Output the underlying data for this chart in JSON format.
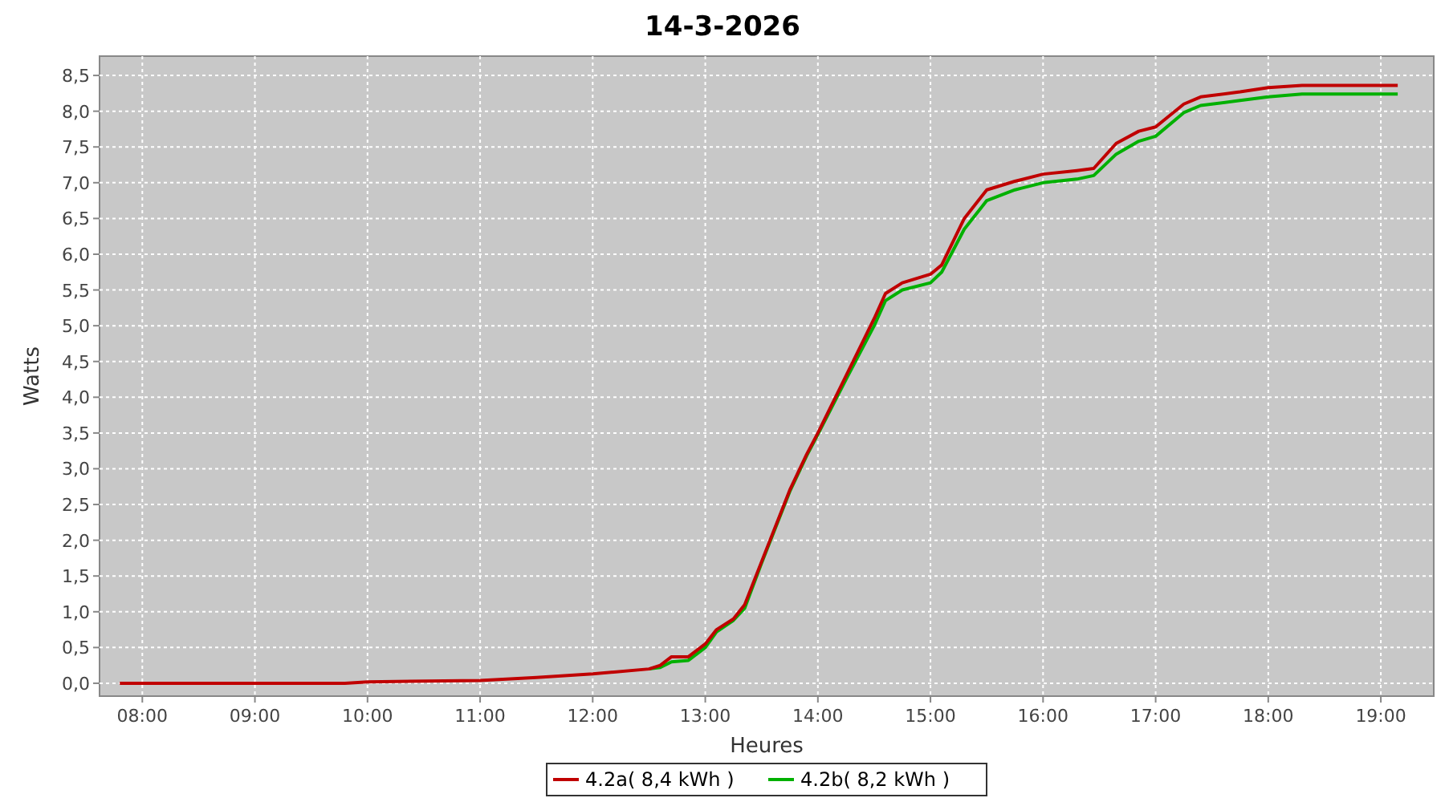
{
  "chart_data": {
    "type": "line",
    "title": "14-3-2026",
    "xlabel": "Heures",
    "ylabel": "Watts",
    "xlim": [
      7.62,
      19.47
    ],
    "ylim": [
      -0.18,
      8.77
    ],
    "xticks": [
      {
        "value": 8,
        "label": "08:00"
      },
      {
        "value": 9,
        "label": "09:00"
      },
      {
        "value": 10,
        "label": "10:00"
      },
      {
        "value": 11,
        "label": "11:00"
      },
      {
        "value": 12,
        "label": "12:00"
      },
      {
        "value": 13,
        "label": "13:00"
      },
      {
        "value": 14,
        "label": "14:00"
      },
      {
        "value": 15,
        "label": "15:00"
      },
      {
        "value": 16,
        "label": "16:00"
      },
      {
        "value": 17,
        "label": "17:00"
      },
      {
        "value": 18,
        "label": "18:00"
      },
      {
        "value": 19,
        "label": "19:00"
      }
    ],
    "yticks": [
      {
        "value": 0,
        "label": "0,0"
      },
      {
        "value": 0.5,
        "label": "0,5"
      },
      {
        "value": 1,
        "label": "1,0"
      },
      {
        "value": 1.5,
        "label": "1,5"
      },
      {
        "value": 2,
        "label": "2,0"
      },
      {
        "value": 2.5,
        "label": "2,5"
      },
      {
        "value": 3,
        "label": "3,0"
      },
      {
        "value": 3.5,
        "label": "3,5"
      },
      {
        "value": 4,
        "label": "4,0"
      },
      {
        "value": 4.5,
        "label": "4,5"
      },
      {
        "value": 5,
        "label": "5,0"
      },
      {
        "value": 5.5,
        "label": "5,5"
      },
      {
        "value": 6,
        "label": "6,0"
      },
      {
        "value": 6.5,
        "label": "6,5"
      },
      {
        "value": 7,
        "label": "7,0"
      },
      {
        "value": 7.5,
        "label": "7,5"
      },
      {
        "value": 8,
        "label": "8,0"
      },
      {
        "value": 8.5,
        "label": "8,5"
      }
    ],
    "x": [
      7.8,
      9.8,
      10,
      11,
      11.5,
      12,
      12.5,
      12.6,
      12.7,
      12.85,
      13,
      13.1,
      13.25,
      13.35,
      13.5,
      13.75,
      13.9,
      14,
      14.25,
      14.5,
      14.6,
      14.75,
      15,
      15.1,
      15.3,
      15.5,
      15.75,
      16,
      16.3,
      16.45,
      16.65,
      16.85,
      17,
      17.25,
      17.4,
      17.75,
      18,
      18.3,
      19.15
    ],
    "series": [
      {
        "name": "4.2a( 8,4 kWh )",
        "color": "#c00000",
        "values": [
          0,
          0,
          0.02,
          0.04,
          0.08,
          0.13,
          0.2,
          0.25,
          0.37,
          0.37,
          0.55,
          0.75,
          0.9,
          1.1,
          1.7,
          2.7,
          3.2,
          3.5,
          4.3,
          5.1,
          5.45,
          5.6,
          5.72,
          5.85,
          6.5,
          6.9,
          7.02,
          7.12,
          7.17,
          7.2,
          7.55,
          7.72,
          7.78,
          8.1,
          8.2,
          8.27,
          8.33,
          8.36,
          8.36
        ]
      },
      {
        "name": "4.2b( 8,2 kWh )",
        "color": "#00b000",
        "values": [
          null,
          null,
          null,
          null,
          null,
          null,
          0.2,
          0.22,
          0.3,
          0.32,
          0.5,
          0.72,
          0.88,
          1.05,
          1.68,
          2.68,
          3.18,
          3.48,
          4.25,
          5.0,
          5.35,
          5.5,
          5.6,
          5.75,
          6.35,
          6.75,
          6.9,
          7.0,
          7.05,
          7.1,
          7.4,
          7.58,
          7.65,
          7.98,
          8.08,
          8.15,
          8.2,
          8.24,
          8.24
        ]
      }
    ],
    "grid": true,
    "legend": "bottom",
    "line_style": "solid",
    "marker": "none"
  }
}
